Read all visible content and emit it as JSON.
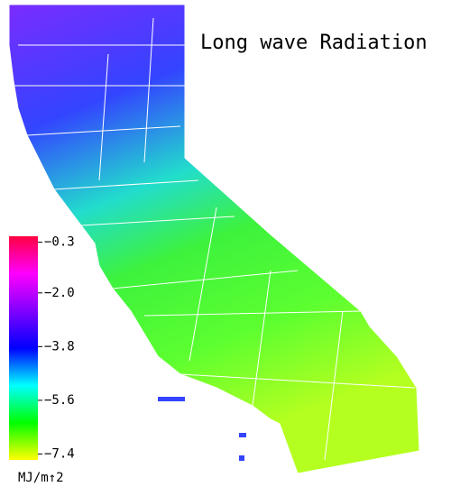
{
  "chart_data": {
    "type": "colormap-map",
    "title": "Long wave Radiation",
    "colorbar_label": "MJ/m↑2",
    "colorbar_lim": [
      -7.6,
      -0.1
    ],
    "colorbar_ticks": [
      {
        "value": -0.3,
        "label": "−0.3"
      },
      {
        "value": -2.0,
        "label": "−2.0"
      },
      {
        "value": -3.8,
        "label": "−3.8"
      },
      {
        "value": -5.6,
        "label": "−5.6"
      },
      {
        "value": -7.4,
        "label": "−7.4"
      }
    ],
    "colormap": [
      "#ffff00",
      "#00ff00",
      "#00ffff",
      "#0000ff",
      "#8000ff",
      "#ff00ff",
      "#ff0040"
    ]
  }
}
